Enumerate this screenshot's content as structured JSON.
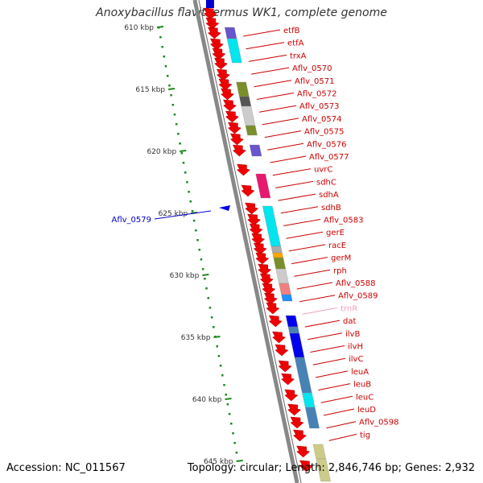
{
  "title": "Anoxybacillus flavithermus WK1, complete genome",
  "accession": "Accession: NC_011567",
  "summary": "Topology: circular; Length: 2,846,746 bp; Genes: 2,932",
  "scale_ticks": [
    {
      "label": "610 kbp"
    },
    {
      "label": "615 kbp"
    },
    {
      "label": "620 kbp"
    },
    {
      "label": "625 kbp"
    },
    {
      "label": "630 kbp"
    },
    {
      "label": "635 kbp"
    },
    {
      "label": "640 kbp"
    },
    {
      "label": "645 kbp"
    }
  ],
  "left_gene": {
    "label": "Aflv_0579",
    "color": "#0000cc"
  },
  "genes": [
    {
      "label": "etfB",
      "color": "#cc0000"
    },
    {
      "label": "etfA",
      "color": "#cc0000"
    },
    {
      "label": "trxA",
      "color": "#cc0000"
    },
    {
      "label": "Aflv_0570",
      "color": "#cc0000"
    },
    {
      "label": "Aflv_0571",
      "color": "#cc0000"
    },
    {
      "label": "Aflv_0572",
      "color": "#cc0000"
    },
    {
      "label": "Aflv_0573",
      "color": "#cc0000"
    },
    {
      "label": "Aflv_0574",
      "color": "#cc0000"
    },
    {
      "label": "Aflv_0575",
      "color": "#cc0000"
    },
    {
      "label": "Aflv_0576",
      "color": "#cc0000"
    },
    {
      "label": "Aflv_0577",
      "color": "#cc0000"
    },
    {
      "label": "uvrC",
      "color": "#cc0000"
    },
    {
      "label": "sdhC",
      "color": "#cc0000"
    },
    {
      "label": "sdhA",
      "color": "#cc0000"
    },
    {
      "label": "sdhB",
      "color": "#cc0000"
    },
    {
      "label": "Aflv_0583",
      "color": "#cc0000"
    },
    {
      "label": "gerE",
      "color": "#cc0000"
    },
    {
      "label": "racE",
      "color": "#cc0000"
    },
    {
      "label": "gerM",
      "color": "#cc0000"
    },
    {
      "label": "rph",
      "color": "#cc0000"
    },
    {
      "label": "Aflv_0588",
      "color": "#cc0000"
    },
    {
      "label": "Aflv_0589",
      "color": "#cc0000"
    },
    {
      "label": "trnR",
      "color": "#f0a0c0"
    },
    {
      "label": "dat",
      "color": "#cc0000"
    },
    {
      "label": "ilvB",
      "color": "#cc0000"
    },
    {
      "label": "ilvH",
      "color": "#cc0000"
    },
    {
      "label": "ilvC",
      "color": "#cc0000"
    },
    {
      "label": "leuA",
      "color": "#cc0000"
    },
    {
      "label": "leuB",
      "color": "#cc0000"
    },
    {
      "label": "leuC",
      "color": "#cc0000"
    },
    {
      "label": "leuD",
      "color": "#cc0000"
    },
    {
      "label": "Aflv_0598",
      "color": "#cc0000"
    },
    {
      "label": "tig",
      "color": "#cc0000"
    }
  ],
  "cog_colors": [
    "#6655cc",
    "#00e5ee",
    "#aaaaaa",
    "#7a8f2a",
    "#555555",
    "#cccccc",
    "#e8186e",
    "#ffa500",
    "#f08080",
    "#1e90ff",
    "#0000ee",
    "#4682b4",
    "#cccc88"
  ]
}
